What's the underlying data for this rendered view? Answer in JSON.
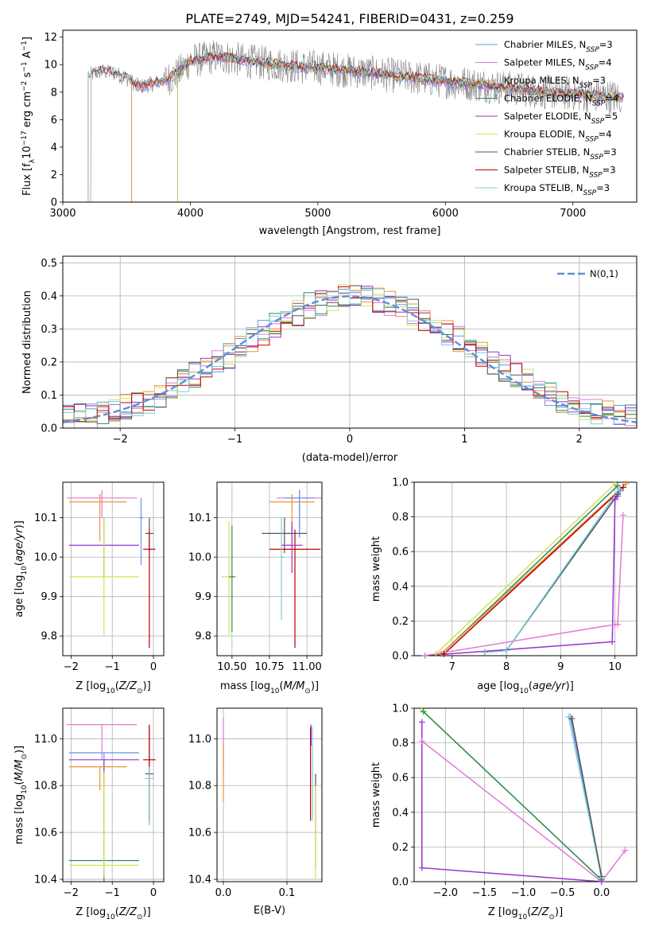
{
  "title": "PLATE=2749, MJD=54241, FIBERID=0431, z=0.259",
  "colors": {
    "Chabrier MILES": "#6495ed",
    "Salpeter MILES": "#e07bd6",
    "Kroupa MILES": "#e8963c",
    "Chabrier ELODIE": "#2e8b57",
    "Salpeter ELODIE": "#9a32cd",
    "Kroupa ELODIE": "#d4e157",
    "Chabrier STELIB": "#555555",
    "Salpeter STELIB": "#c00000",
    "Kroupa STELIB": "#7ecfd8",
    "data": "#808080",
    "gauss": "#5b8fd9"
  },
  "chart_data": [
    {
      "type": "line",
      "panel": "spectrum",
      "xlabel": "wavelength [Angstrom, rest frame]",
      "ylabel": "Flux [f_λ 10^-17 erg cm^-2 s^-1 A^-1]",
      "xlim": [
        3000,
        7500
      ],
      "ylim": [
        0,
        12.5
      ],
      "xticks": [
        "3000",
        "4000",
        "5000",
        "6000",
        "7000"
      ],
      "yticks": [
        "0",
        "2",
        "4",
        "6",
        "8",
        "10",
        "12"
      ],
      "legend_position": "top-right",
      "legend": [
        {
          "name": "Chabrier MILES",
          "nssp": "3"
        },
        {
          "name": "Salpeter MILES",
          "nssp": "4"
        },
        {
          "name": "Kroupa MILES",
          "nssp": "3"
        },
        {
          "name": "Chabrier ELODIE",
          "nssp": "4"
        },
        {
          "name": "Salpeter ELODIE",
          "nssp": "5"
        },
        {
          "name": "Kroupa ELODIE",
          "nssp": "4"
        },
        {
          "name": "Chabrier STELIB",
          "nssp": "3"
        },
        {
          "name": "Salpeter STELIB",
          "nssp": "3"
        },
        {
          "name": "Kroupa STELIB",
          "nssp": "3"
        }
      ],
      "legend_prefix": "N",
      "legend_sub": "SSP",
      "continuum": {
        "wave": [
          3200,
          3300,
          3400,
          3500,
          3600,
          3700,
          3800,
          3900,
          4000,
          4100,
          4200,
          4300,
          4400,
          4500,
          4600,
          4700,
          4800,
          4900,
          5000,
          5200,
          5400,
          5600,
          5800,
          6000,
          6200,
          6400,
          6600,
          6800,
          7000,
          7200,
          7400
        ],
        "flux": [
          9.2,
          9.5,
          9.4,
          9.0,
          8.4,
          8.6,
          8.9,
          9.3,
          10.3,
          10.4,
          10.6,
          10.5,
          10.3,
          10.2,
          10.1,
          10.0,
          9.9,
          9.8,
          9.8,
          9.6,
          9.4,
          9.2,
          9.0,
          8.8,
          8.6,
          8.4,
          8.2,
          8.0,
          7.9,
          7.7,
          7.6
        ]
      },
      "model_start_wave": {
        "Chabrier MILES": 3540,
        "Salpeter MILES": 3540,
        "Kroupa MILES": 3540,
        "Chabrier ELODIE": 3900,
        "Salpeter ELODIE": 3900,
        "Kroupa ELODIE": 3900,
        "Chabrier STELIB": 3200,
        "Salpeter STELIB": 3200,
        "Kroupa STELIB": 3200
      },
      "data_range": [
        3210,
        7380
      ]
    },
    {
      "type": "histogram",
      "panel": "residuals",
      "xlabel": "(data-model)/error",
      "ylabel": "Normed distribution",
      "xlim": [
        -2.5,
        2.5
      ],
      "ylim": [
        0,
        0.52
      ],
      "xticks": [
        "-2",
        "-1",
        "0",
        "1",
        "2"
      ],
      "yticks": [
        "0.0",
        "0.1",
        "0.2",
        "0.3",
        "0.4",
        "0.5"
      ],
      "gauss_label": "N(0,1)",
      "legend_position": "top-right",
      "bin_edges": [
        -2.5,
        -2.4,
        -2.3,
        -2.2,
        -2.1,
        -2.0,
        -1.9,
        -1.8,
        -1.7,
        -1.6,
        -1.5,
        -1.4,
        -1.3,
        -1.2,
        -1.1,
        -1.0,
        -0.9,
        -0.8,
        -0.7,
        -0.6,
        -0.5,
        -0.4,
        -0.3,
        -0.2,
        -0.1,
        0.0,
        0.1,
        0.2,
        0.3,
        0.4,
        0.5,
        0.6,
        0.7,
        0.8,
        0.9,
        1.0,
        1.1,
        1.2,
        1.3,
        1.4,
        1.5,
        1.6,
        1.7,
        1.8,
        1.9,
        2.0,
        2.1,
        2.2,
        2.3,
        2.4,
        2.5
      ],
      "hist_base": [
        0.03,
        0.035,
        0.04,
        0.05,
        0.055,
        0.065,
        0.075,
        0.085,
        0.1,
        0.12,
        0.14,
        0.16,
        0.18,
        0.2,
        0.22,
        0.245,
        0.27,
        0.29,
        0.31,
        0.33,
        0.35,
        0.37,
        0.38,
        0.39,
        0.4,
        0.4,
        0.41,
        0.39,
        0.38,
        0.37,
        0.35,
        0.33,
        0.31,
        0.29,
        0.27,
        0.25,
        0.22,
        0.2,
        0.18,
        0.16,
        0.14,
        0.12,
        0.1,
        0.085,
        0.075,
        0.06,
        0.05,
        0.045,
        0.035,
        0.03
      ]
    },
    {
      "type": "errorbar",
      "panel": "age-vs-Z",
      "xlabel": "Z [log10(Z/Z⊙)]",
      "ylabel": "age [log10(age/yr)]",
      "xlim": [
        -2.2,
        0.25
      ],
      "ylim": [
        9.75,
        10.19
      ],
      "xticks": [
        "-2",
        "-1",
        "0"
      ],
      "yticks": [
        "9.8",
        "9.9",
        "10.0",
        "10.1"
      ],
      "points": [
        {
          "name": "Salpeter MILES",
          "x": -1.25,
          "xerr": [
            0.85,
            0.85
          ],
          "y": 10.15,
          "yerr": [
            0.05,
            0.02
          ]
        },
        {
          "name": "Kroupa MILES",
          "x": -1.3,
          "xerr": [
            0.75,
            0.65
          ],
          "y": 10.14,
          "yerr": [
            0.1,
            0.02
          ]
        },
        {
          "name": "Salpeter ELODIE",
          "x": -1.2,
          "xerr": [
            0.85,
            0.85
          ],
          "y": 10.03,
          "yerr": [
            0.08,
            0.07
          ]
        },
        {
          "name": "Kroupa ELODIE",
          "x": -1.2,
          "xerr": [
            0.85,
            0.85
          ],
          "y": 9.95,
          "yerr": [
            0.15,
            0.15
          ]
        },
        {
          "name": "Chabrier STELIB",
          "x": -0.1,
          "xerr": [
            0.1,
            0.1
          ],
          "y": 10.06,
          "yerr": [
            0.05,
            0.04
          ]
        },
        {
          "name": "Salpeter STELIB",
          "x": -0.1,
          "xerr": [
            0.15,
            0.15
          ],
          "y": 10.02,
          "yerr": [
            0.25,
            0.05
          ]
        },
        {
          "name": "Chabrier MILES",
          "x": -0.3,
          "xerr": [
            0.05,
            0.05
          ],
          "y": 10.1,
          "yerr": [
            0.12,
            0.05
          ]
        }
      ]
    },
    {
      "type": "errorbar",
      "panel": "age-vs-mass",
      "xlabel": "mass [log10(M/M⊙)]",
      "ylabel": "",
      "xlim": [
        10.4,
        11.1
      ],
      "ylim": [
        9.75,
        10.19
      ],
      "xticks": [
        "10.50",
        "10.75",
        "11.00"
      ],
      "yticks": [
        "9.8",
        "9.9",
        "10.0",
        "10.1"
      ],
      "points": [
        {
          "name": "Kroupa ELODIE",
          "x": 10.48,
          "xerr": [
            0.05,
            0.05
          ],
          "y": 9.95,
          "yerr": [
            0.15,
            0.14
          ]
        },
        {
          "name": "Chabrier ELODIE",
          "x": 10.5,
          "xerr": [
            0.02,
            0.02
          ],
          "y": 9.95,
          "yerr": [
            0.14,
            0.13
          ]
        },
        {
          "name": "Salpeter MILES",
          "x": 10.95,
          "xerr": [
            0.15,
            0.15
          ],
          "y": 10.15,
          "yerr": [
            0.1,
            0.02
          ]
        },
        {
          "name": "Kroupa MILES",
          "x": 10.9,
          "xerr": [
            0.15,
            0.15
          ],
          "y": 10.14,
          "yerr": [
            0.1,
            0.02
          ]
        },
        {
          "name": "Chabrier STELIB",
          "x": 10.85,
          "xerr": [
            0.15,
            0.15
          ],
          "y": 10.06,
          "yerr": [
            0.05,
            0.04
          ]
        },
        {
          "name": "Salpeter STELIB",
          "x": 10.92,
          "xerr": [
            0.17,
            0.17
          ],
          "y": 10.02,
          "yerr": [
            0.25,
            0.05
          ]
        },
        {
          "name": "Salpeter ELODIE",
          "x": 10.9,
          "xerr": [
            0.07,
            0.07
          ],
          "y": 10.03,
          "yerr": [
            0.07,
            0.06
          ]
        },
        {
          "name": "Kroupa STELIB",
          "x": 10.83,
          "xerr": [
            0.02,
            0.02
          ],
          "y": 10.0,
          "yerr": [
            0.16,
            0.1
          ]
        },
        {
          "name": "Chabrier MILES",
          "x": 10.95,
          "xerr": [
            0.1,
            0.1
          ],
          "y": 10.15,
          "yerr": [
            0.1,
            0.02
          ]
        }
      ]
    },
    {
      "type": "line",
      "panel": "mass-weight-vs-age",
      "xlabel": "age [log10(age/yr)]",
      "ylabel": "mass weight",
      "xlim": [
        6.3,
        10.4
      ],
      "ylim": [
        0,
        1
      ],
      "xticks": [
        "7",
        "8",
        "9",
        "10"
      ],
      "yticks": [
        "0.0",
        "0.2",
        "0.4",
        "0.6",
        "0.8",
        "1.0"
      ],
      "series": [
        {
          "name": "Kroupa ELODIE",
          "x": [
            6.7,
            10.0
          ],
          "y": [
            0.01,
            0.99
          ]
        },
        {
          "name": "Chabrier ELODIE",
          "x": [
            6.8,
            10.05
          ],
          "y": [
            0.01,
            0.98
          ]
        },
        {
          "name": "Kroupa MILES",
          "x": [
            6.8,
            10.2
          ],
          "y": [
            0.01,
            0.99
          ]
        },
        {
          "name": "Salpeter STELIB",
          "x": [
            6.85,
            10.15
          ],
          "y": [
            0.01,
            0.97
          ]
        },
        {
          "name": "Chabrier MILES",
          "x": [
            7.6,
            8.0,
            10.1
          ],
          "y": [
            0.02,
            0.03,
            0.95
          ]
        },
        {
          "name": "Chabrier STELIB",
          "x": [
            7.6,
            8.0,
            10.05
          ],
          "y": [
            0.02,
            0.03,
            0.93
          ]
        },
        {
          "name": "Kroupa STELIB",
          "x": [
            7.6,
            8.0,
            10.08
          ],
          "y": [
            0.02,
            0.03,
            0.96
          ]
        },
        {
          "name": "Salpeter ELODIE",
          "x": [
            6.5,
            9.95,
            10.0,
            10.05
          ],
          "y": [
            0.0,
            0.08,
            0.9,
            0.92
          ]
        },
        {
          "name": "Salpeter MILES",
          "x": [
            6.5,
            10.0,
            10.05,
            10.15
          ],
          "y": [
            0.0,
            0.18,
            0.18,
            0.81
          ]
        }
      ]
    },
    {
      "type": "errorbar",
      "panel": "mass-vs-Z",
      "xlabel": "Z [log10(Z/Z⊙)]",
      "ylabel": "mass [log10(M/M⊙)]",
      "xlim": [
        -2.2,
        0.25
      ],
      "ylim": [
        10.39,
        11.13
      ],
      "xticks": [
        "-2",
        "-1",
        "0"
      ],
      "yticks": [
        "10.4",
        "10.6",
        "10.8",
        "11.0"
      ],
      "points": [
        {
          "name": "Salpeter MILES",
          "x": -1.25,
          "xerr": [
            0.85,
            0.85
          ],
          "y": 11.06,
          "yerr": [
            0.15,
            0.0
          ]
        },
        {
          "name": "Chabrier MILES",
          "x": -1.2,
          "xerr": [
            0.85,
            0.85
          ],
          "y": 10.94,
          "yerr": [
            0.12,
            0.0
          ]
        },
        {
          "name": "Salpeter ELODIE",
          "x": -1.2,
          "xerr": [
            0.85,
            0.85
          ],
          "y": 10.91,
          "yerr": [
            0.1,
            0.0
          ]
        },
        {
          "name": "Kroupa MILES",
          "x": -1.3,
          "xerr": [
            0.75,
            0.65
          ],
          "y": 10.88,
          "yerr": [
            0.1,
            0.0
          ]
        },
        {
          "name": "Chabrier STELIB",
          "x": -0.1,
          "xerr": [
            0.1,
            0.1
          ],
          "y": 10.85,
          "yerr": [
            0.2,
            0.2
          ]
        },
        {
          "name": "Salpeter STELIB",
          "x": -0.1,
          "xerr": [
            0.15,
            0.15
          ],
          "y": 10.91,
          "yerr": [
            0.27,
            0.15
          ]
        },
        {
          "name": "Chabrier ELODIE",
          "x": -1.2,
          "xerr": [
            0.85,
            0.85
          ],
          "y": 10.48,
          "yerr": [
            0.1,
            0.37
          ]
        },
        {
          "name": "Kroupa ELODIE",
          "x": -1.2,
          "xerr": [
            0.85,
            0.85
          ],
          "y": 10.46,
          "yerr": [
            0.05,
            0.4
          ]
        },
        {
          "name": "Kroupa STELIB",
          "x": -0.1,
          "xerr": [
            0.1,
            0.1
          ],
          "y": 10.83,
          "yerr": [
            0.2,
            0.05
          ]
        }
      ]
    },
    {
      "type": "errorbar",
      "panel": "mass-vs-EBV",
      "xlabel": "E(B-V)",
      "ylabel": "",
      "xlim": [
        -0.01,
        0.155
      ],
      "ylim": [
        10.39,
        11.13
      ],
      "xticks": [
        "0.0",
        "0.1"
      ],
      "yticks": [
        "10.4",
        "10.6",
        "10.8",
        "11.0"
      ],
      "points": [
        {
          "name": "Salpeter MILES",
          "x": 0.0,
          "xerr": [
            0.0,
            0.0
          ],
          "y": 10.97,
          "yerr": [
            0.12,
            0.12
          ]
        },
        {
          "name": "Kroupa MILES",
          "x": 0.0,
          "xerr": [
            0.0,
            0.0
          ],
          "y": 10.88,
          "yerr": [
            0.15,
            0.1
          ]
        },
        {
          "name": "Chabrier STELIB",
          "x": 0.145,
          "xerr": [
            0.0,
            0.0
          ],
          "y": 10.75,
          "yerr": [
            0.3,
            0.1
          ]
        },
        {
          "name": "Salpeter STELIB",
          "x": 0.137,
          "xerr": [
            0.0,
            0.0
          ],
          "y": 10.85,
          "yerr": [
            0.2,
            0.2
          ]
        },
        {
          "name": "Kroupa ELODIE",
          "x": 0.145,
          "xerr": [
            0.0,
            0.0
          ],
          "y": 10.6,
          "yerr": [
            0.2,
            0.2
          ]
        },
        {
          "name": "Kroupa STELIB",
          "x": 0.14,
          "xerr": [
            0.0,
            0.0
          ],
          "y": 10.85,
          "yerr": [
            0.2,
            0.2
          ]
        },
        {
          "name": "Salpeter ELODIE",
          "x": 0.138,
          "xerr": [
            0.0,
            0.0
          ],
          "y": 11.02,
          "yerr": [
            0.05,
            0.04
          ]
        }
      ]
    },
    {
      "type": "line",
      "panel": "mass-weight-vs-Z",
      "xlabel": "Z [log10(Z/Z⊙)]",
      "ylabel": "mass weight",
      "xlim": [
        -2.4,
        0.45
      ],
      "ylim": [
        0,
        1
      ],
      "xticks": [
        "-2.0",
        "-1.5",
        "-1.0",
        "-0.5",
        "0.0"
      ],
      "yticks": [
        "0.0",
        "0.2",
        "0.4",
        "0.6",
        "0.8",
        "1.0"
      ],
      "series": [
        {
          "name": "Kroupa ELODIE",
          "x": [
            -2.3,
            0.0
          ],
          "y": [
            0.99,
            0.01
          ]
        },
        {
          "name": "Chabrier ELODIE",
          "x": [
            -2.28,
            0.0
          ],
          "y": [
            0.98,
            0.01
          ]
        },
        {
          "name": "Chabrier MILES",
          "x": [
            -0.4,
            0.0
          ],
          "y": [
            0.95,
            0.02
          ]
        },
        {
          "name": "Kroupa STELIB",
          "x": [
            -0.42,
            0.0
          ],
          "y": [
            0.95,
            0.02
          ]
        },
        {
          "name": "Chabrier STELIB",
          "x": [
            -0.38,
            0.0
          ],
          "y": [
            0.94,
            0.03
          ]
        },
        {
          "name": "Salpeter MILES",
          "x": [
            -2.3,
            0.0,
            0.3
          ],
          "y": [
            0.81,
            0.0,
            0.18
          ]
        },
        {
          "name": "Salpeter ELODIE",
          "x": [
            -2.3,
            -2.3,
            0.0
          ],
          "y": [
            0.92,
            0.08,
            0.0
          ]
        }
      ]
    }
  ]
}
